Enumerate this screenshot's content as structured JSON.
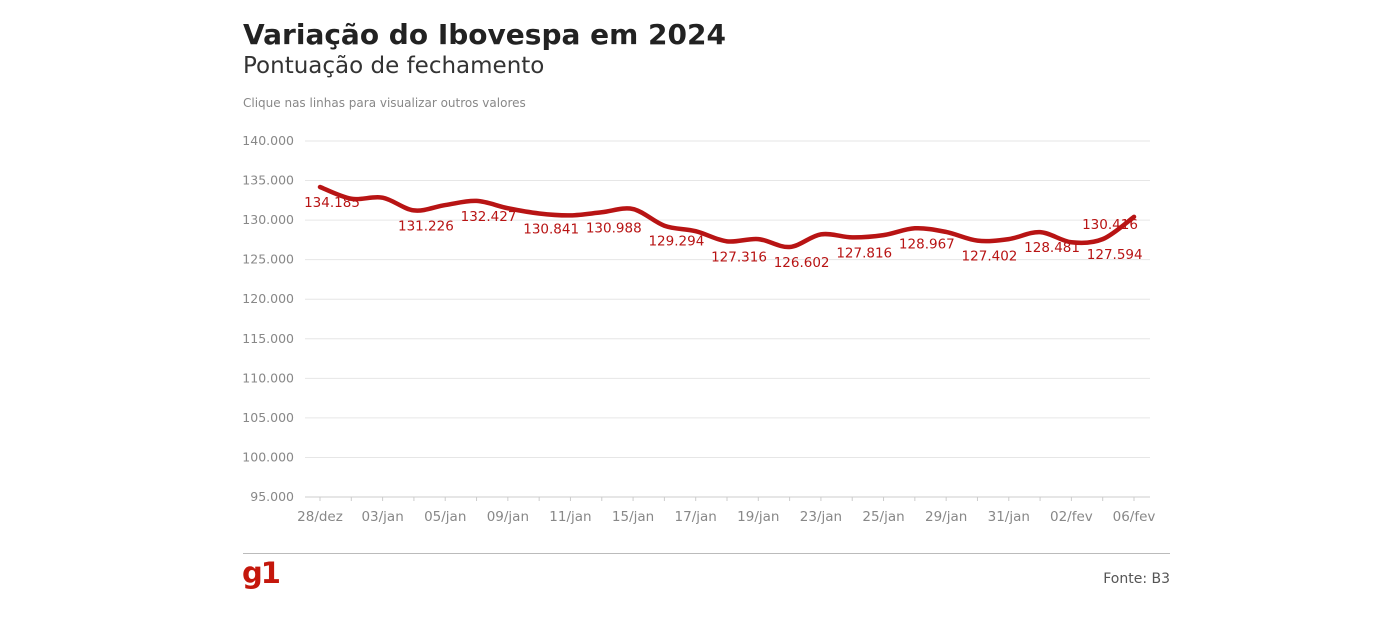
{
  "header": {
    "title": "Variação do Ibovespa em 2024",
    "subtitle": "Pontuação de fechamento",
    "note": "Clique nas linhas para visualizar outros valores"
  },
  "footer": {
    "logo": "g1",
    "source": "Fonte: B3"
  },
  "colors": {
    "line": "#b81414",
    "label": "#b81414",
    "grid": "#e6e6e6",
    "axis_text": "#888888"
  },
  "chart_data": {
    "type": "line",
    "ylim": [
      95000,
      140000
    ],
    "yticks": [
      "140.000",
      "135.000",
      "130.000",
      "125.000",
      "120.000",
      "115.000",
      "110.000",
      "105.000",
      "100.000",
      "95.000"
    ],
    "ytick_values": [
      140000,
      135000,
      130000,
      125000,
      120000,
      115000,
      110000,
      105000,
      100000,
      95000
    ],
    "xticks": [
      "28/dez",
      "03/jan",
      "05/jan",
      "09/jan",
      "11/jan",
      "15/jan",
      "17/jan",
      "19/jan",
      "23/jan",
      "25/jan",
      "29/jan",
      "31/jan",
      "02/fev",
      "06/fev"
    ],
    "grid": true,
    "series": [
      {
        "x": [
          "28/dez",
          "02/jan",
          "03/jan",
          "04/jan",
          "05/jan",
          "08/jan",
          "09/jan",
          "10/jan",
          "11/jan",
          "12/jan",
          "15/jan",
          "16/jan",
          "17/jan",
          "18/jan",
          "19/jan",
          "22/jan",
          "23/jan",
          "24/jan",
          "25/jan",
          "26/jan",
          "29/jan",
          "30/jan",
          "31/jan",
          "01/fev",
          "02/fev",
          "05/fev",
          "06/fev"
        ],
        "values": [
          134185,
          132697,
          132834,
          131226,
          131900,
          132427,
          131500,
          130841,
          130600,
          130988,
          131400,
          129294,
          128600,
          127316,
          127600,
          126602,
          128200,
          127816,
          128100,
          128967,
          128500,
          127402,
          127600,
          128481,
          127200,
          127594,
          130416
        ]
      }
    ],
    "data_labels": [
      {
        "x": "28/dez",
        "text": "134.185"
      },
      {
        "x": "04/jan",
        "text": "131.226"
      },
      {
        "x": "08/jan",
        "text": "132.427"
      },
      {
        "x": "10/jan",
        "text": "130.841"
      },
      {
        "x": "12/jan",
        "text": "130.988"
      },
      {
        "x": "16/jan",
        "text": "129.294"
      },
      {
        "x": "18/jan",
        "text": "127.316"
      },
      {
        "x": "22/jan",
        "text": "126.602"
      },
      {
        "x": "24/jan",
        "text": "127.816"
      },
      {
        "x": "26/jan",
        "text": "128.967"
      },
      {
        "x": "30/jan",
        "text": "127.402"
      },
      {
        "x": "01/fev",
        "text": "128.481"
      },
      {
        "x": "05/fev",
        "text": "127.594"
      },
      {
        "x": "06/fev",
        "text": "130.416"
      }
    ]
  }
}
